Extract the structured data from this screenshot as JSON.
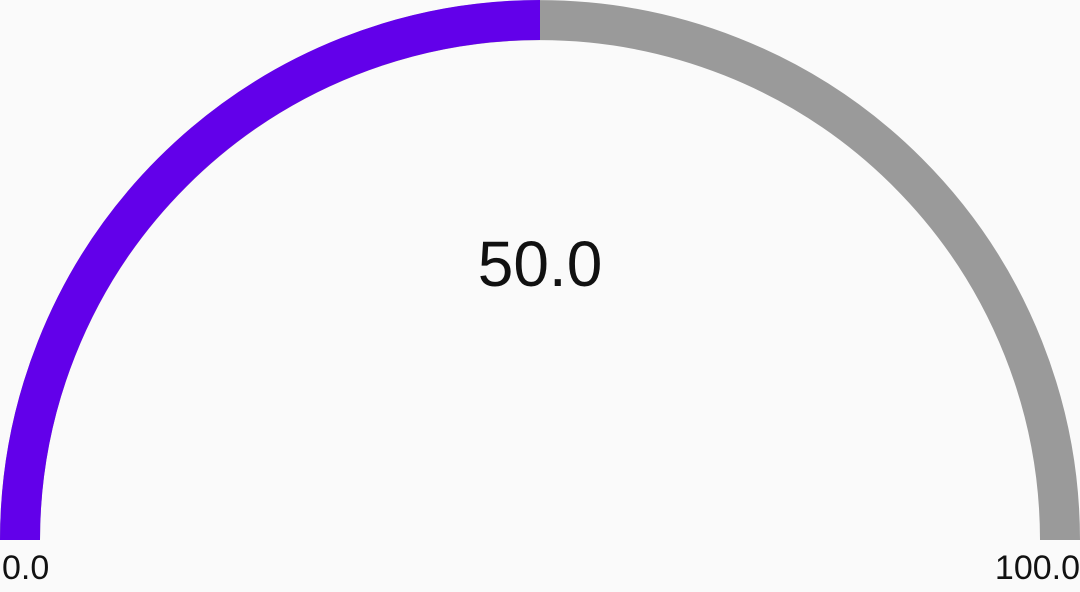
{
  "gauge": {
    "value": 50,
    "min": 0,
    "max": 100,
    "value_text": "50.0",
    "min_label": "0.0",
    "max_label": "100.0",
    "colors": {
      "filled": "#6200ea",
      "track": "#9a9a9a",
      "background": "#fafafa",
      "text": "#111111"
    }
  }
}
